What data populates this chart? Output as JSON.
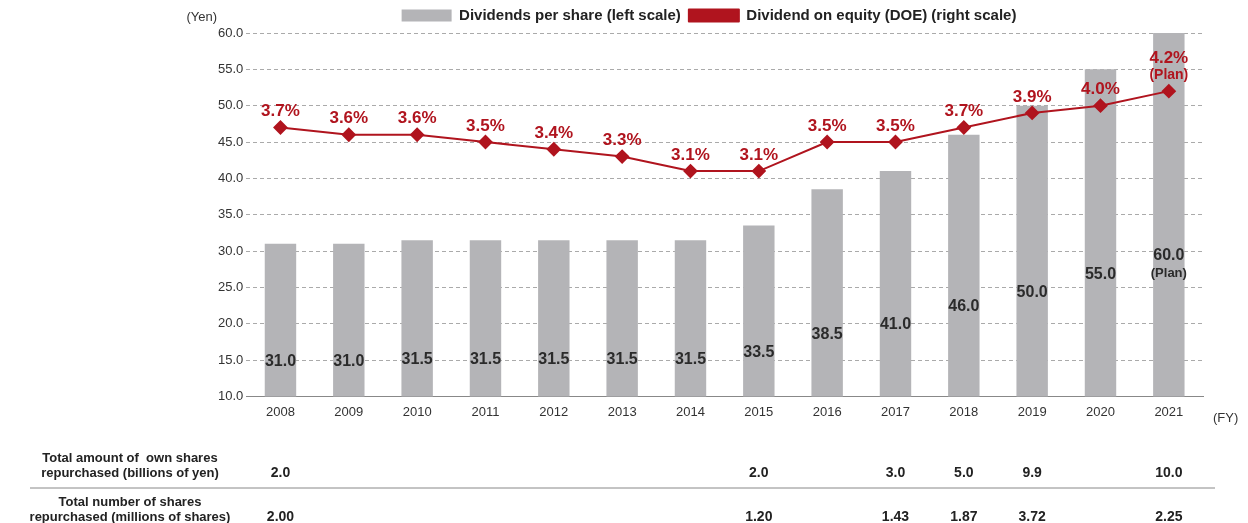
{
  "chart_data": {
    "type": "bar",
    "ylabel": "(Yen)",
    "xlabel": "(FY)",
    "categories": [
      "2008",
      "2009",
      "2010",
      "2011",
      "2012",
      "2013",
      "2014",
      "2015",
      "2016",
      "2017",
      "2018",
      "2019",
      "2020",
      "2021"
    ],
    "series": [
      {
        "name": "Dividends per share (left scale)",
        "color": "#b4b4b7",
        "values": [
          31.0,
          31.0,
          31.5,
          31.5,
          31.5,
          31.5,
          31.5,
          33.5,
          38.5,
          41.0,
          46.0,
          50.0,
          55.0,
          60.0
        ],
        "value_labels": [
          "31.0",
          "31.0",
          "31.5",
          "31.5",
          "31.5",
          "31.5",
          "31.5",
          "33.5",
          "38.5",
          "41.0",
          "46.0",
          "50.0",
          "55.0",
          "60.0\n(Plan)"
        ]
      },
      {
        "name": "Dividend on equity (DOE) (right scale)",
        "type": "line",
        "axis": "y2",
        "color": "#b0141e",
        "marker": "diamond",
        "values": [
          3.7,
          3.6,
          3.6,
          3.5,
          3.4,
          3.3,
          3.1,
          3.1,
          3.5,
          3.5,
          3.7,
          3.9,
          4.0,
          4.2
        ],
        "value_labels": [
          "3.7%",
          "3.6%",
          "3.6%",
          "3.5%",
          "3.4%",
          "3.3%",
          "3.1%",
          "3.1%",
          "3.5%",
          "3.5%",
          "3.7%",
          "3.9%",
          "4.0%",
          "4.2%\n(Plan)"
        ]
      }
    ],
    "ylim": [
      10,
      60
    ],
    "yticks": [
      {
        "value": 10,
        "label": "10.0"
      },
      {
        "value": 15,
        "label": "15.0"
      },
      {
        "value": 20,
        "label": "20.0"
      },
      {
        "value": 25,
        "label": "25.0"
      },
      {
        "value": 30,
        "label": "30.0"
      },
      {
        "value": 35,
        "label": "35.0"
      },
      {
        "value": 40,
        "label": "40.0"
      },
      {
        "value": 45,
        "label": "45.0"
      },
      {
        "value": 50,
        "label": "50.0"
      },
      {
        "value": 55,
        "label": "55.0"
      },
      {
        "value": 60,
        "label": "60.0"
      }
    ],
    "y2lim": [
      0,
      5
    ],
    "grid": "y",
    "line_style": "solid",
    "legend": "top",
    "annotations": [
      "Total amount of  own shares\nrepurchased (billions of yen)",
      "2.0",
      "2.0",
      "3.0",
      "5.0",
      "9.9",
      "10.0",
      "Total number of shares\nrepurchased (millions of shares)",
      "2.00",
      "1.20",
      "1.43",
      "1.87",
      "3.72",
      "2.25"
    ]
  }
}
